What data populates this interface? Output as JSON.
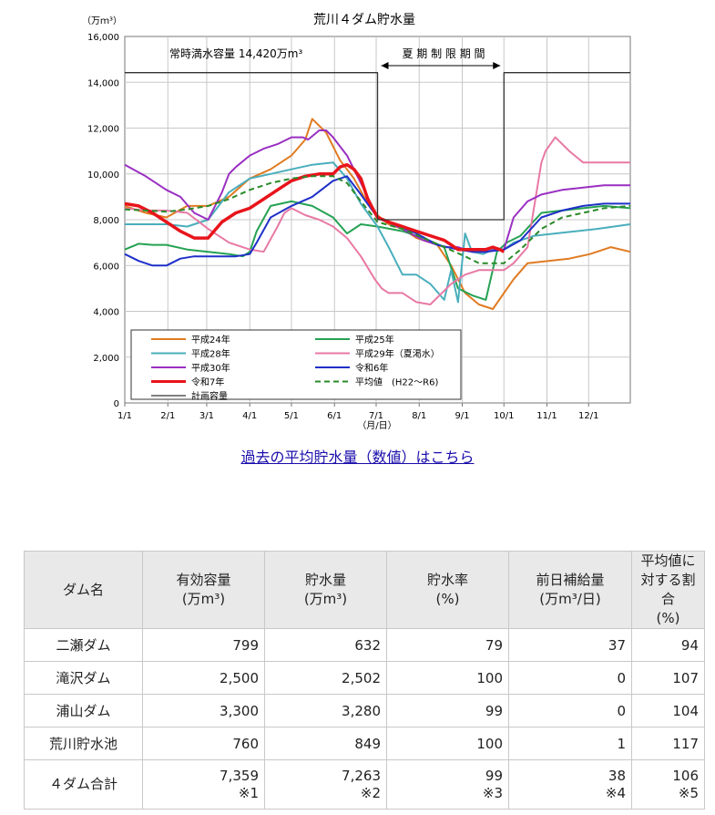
{
  "chart_data": {
    "type": "line",
    "title": "荒川４ダム貯水量",
    "y_unit": "（万ｍ³）",
    "x_unit": "（月/日）",
    "ylim": [
      0,
      16000
    ],
    "yticks": [
      "0",
      "2,000",
      "4,000",
      "6,000",
      "8,000",
      "10,000",
      "12,000",
      "14,000",
      "16,000"
    ],
    "y_tick_values": [
      0,
      2000,
      4000,
      6000,
      8000,
      10000,
      12000,
      14000,
      16000
    ],
    "x_months": [
      "1/1",
      "2/1",
      "3/1",
      "4/1",
      "5/1",
      "6/1",
      "7/1",
      "8/1",
      "9/1",
      "10/1",
      "11/1",
      "12/1"
    ],
    "grid": true,
    "legend_position": "bottom-left",
    "annotations": {
      "full_capacity": "常時満水容量  14,420万m³",
      "summer_period": "夏 期 制 限 期 間"
    },
    "series": [
      {
        "name": "平成24年",
        "color": "#e07b22",
        "width": 2,
        "dash": "none",
        "x": [
          0,
          15,
          30,
          45,
          60,
          75,
          90,
          105,
          120,
          130,
          135,
          145,
          155,
          165,
          175,
          182,
          190,
          200,
          210,
          225,
          235,
          245,
          255,
          265,
          273,
          280,
          290,
          305,
          320,
          335,
          350,
          364
        ],
        "y": [
          8600,
          8300,
          8100,
          8600,
          8600,
          9000,
          9800,
          10200,
          10800,
          11500,
          12400,
          11800,
          10600,
          9800,
          8700,
          8200,
          7800,
          7600,
          7200,
          6900,
          6000,
          4800,
          4300,
          4100,
          4800,
          5400,
          6100,
          6200,
          6300,
          6500,
          6800,
          6600
        ]
      },
      {
        "name": "平成25年",
        "color": "#25a253",
        "width": 2,
        "dash": "none",
        "x": [
          0,
          10,
          20,
          30,
          45,
          60,
          75,
          85,
          90,
          95,
          105,
          120,
          135,
          150,
          160,
          170,
          182,
          200,
          215,
          230,
          240,
          250,
          260,
          268,
          275,
          285,
          300,
          315,
          330,
          345,
          364
        ],
        "y": [
          6700,
          6950,
          6900,
          6900,
          6700,
          6600,
          6500,
          6400,
          6600,
          7500,
          8600,
          8800,
          8600,
          8100,
          7400,
          7800,
          7700,
          7500,
          7200,
          6800,
          5000,
          4700,
          4500,
          6600,
          7000,
          7300,
          8300,
          8400,
          8500,
          8600,
          8500
        ]
      },
      {
        "name": "平成28年",
        "color": "#4aaebc",
        "width": 2,
        "dash": "none",
        "x": [
          0,
          15,
          30,
          45,
          60,
          75,
          90,
          105,
          120,
          135,
          150,
          160,
          170,
          182,
          190,
          200,
          210,
          220,
          230,
          235,
          240,
          245,
          250,
          258,
          265,
          273,
          280,
          295,
          310,
          325,
          340,
          364
        ],
        "y": [
          7800,
          7800,
          7800,
          7700,
          8000,
          9200,
          9800,
          10000,
          10200,
          10400,
          10500,
          9800,
          8700,
          7700,
          6800,
          5600,
          5600,
          5200,
          4500,
          5800,
          4400,
          7400,
          6600,
          6500,
          6700,
          6700,
          7000,
          7300,
          7400,
          7500,
          7600,
          7800
        ]
      },
      {
        "name": "平成29年（夏渇水）",
        "color": "#e879a4",
        "width": 2,
        "dash": "none",
        "x": [
          0,
          15,
          30,
          45,
          60,
          75,
          90,
          100,
          110,
          115,
          120,
          130,
          140,
          150,
          160,
          170,
          180,
          185,
          190,
          200,
          210,
          220,
          235,
          245,
          255,
          265,
          273,
          280,
          290,
          300,
          303,
          310,
          320,
          330,
          345,
          364
        ],
        "y": [
          8500,
          8400,
          8400,
          8300,
          7600,
          7000,
          6700,
          6600,
          7700,
          8300,
          8500,
          8200,
          8000,
          7700,
          7200,
          6400,
          5400,
          5000,
          4800,
          4800,
          4400,
          4300,
          5200,
          5600,
          5800,
          5800,
          5800,
          6100,
          6800,
          10500,
          11000,
          11600,
          11000,
          10500,
          10500,
          10500
        ]
      },
      {
        "name": "平成30年",
        "color": "#9a2fc2",
        "width": 2,
        "dash": "none",
        "x": [
          0,
          15,
          30,
          40,
          50,
          60,
          70,
          75,
          80,
          90,
          100,
          110,
          120,
          128,
          132,
          140,
          145,
          150,
          155,
          160,
          170,
          182,
          200,
          215,
          230,
          240,
          250,
          260,
          268,
          273,
          280,
          290,
          300,
          315,
          330,
          345,
          364
        ],
        "y": [
          10400,
          9900,
          9300,
          9000,
          8300,
          8000,
          9200,
          10000,
          10300,
          10800,
          11100,
          11300,
          11600,
          11600,
          11500,
          11900,
          11900,
          11600,
          11200,
          10800,
          9600,
          8100,
          7600,
          7100,
          6800,
          6800,
          6600,
          6600,
          6700,
          6700,
          8100,
          8800,
          9100,
          9300,
          9400,
          9500,
          9500
        ]
      },
      {
        "name": "令和6年",
        "color": "#1f30c8",
        "width": 2,
        "dash": "none",
        "x": [
          0,
          10,
          20,
          30,
          40,
          50,
          60,
          70,
          80,
          90,
          95,
          105,
          120,
          135,
          150,
          160,
          170,
          182,
          195,
          210,
          225,
          240,
          250,
          260,
          273,
          285,
          300,
          315,
          330,
          345,
          364
        ],
        "y": [
          6500,
          6200,
          6000,
          6000,
          6300,
          6400,
          6400,
          6400,
          6400,
          6500,
          7000,
          8100,
          8600,
          9000,
          9700,
          9900,
          9100,
          8100,
          7800,
          7400,
          6900,
          6700,
          6600,
          6600,
          6700,
          7100,
          8100,
          8400,
          8600,
          8700,
          8700
        ]
      },
      {
        "name": "令和7年",
        "color": "#e8141b",
        "width": 3.5,
        "dash": "none",
        "x": [
          0,
          10,
          20,
          30,
          40,
          50,
          60,
          70,
          80,
          90,
          100,
          110,
          120,
          130,
          140,
          150,
          155,
          160,
          165,
          170,
          175,
          182,
          190,
          200,
          210,
          220,
          230,
          235,
          240,
          245,
          250,
          255,
          260,
          265,
          270,
          273
        ],
        "y": [
          8700,
          8600,
          8300,
          7900,
          7500,
          7200,
          7200,
          7900,
          8300,
          8500,
          8900,
          9300,
          9700,
          9900,
          10000,
          10000,
          10300,
          10400,
          10200,
          9800,
          8900,
          8100,
          7900,
          7700,
          7500,
          7300,
          7100,
          6900,
          6700,
          6700,
          6700,
          6700,
          6700,
          6800,
          6700,
          6600
        ]
      },
      {
        "name": "平均値　(H22～R6)",
        "color": "#2a8a2a",
        "width": 2,
        "dash": "6,4",
        "x": [
          0,
          15,
          30,
          45,
          60,
          75,
          90,
          105,
          120,
          135,
          150,
          160,
          170,
          182,
          200,
          215,
          230,
          245,
          255,
          265,
          273,
          285,
          300,
          315,
          330,
          345,
          364
        ],
        "y": [
          8450,
          8400,
          8350,
          8450,
          8600,
          8900,
          9300,
          9600,
          9800,
          9900,
          9900,
          9600,
          8800,
          7900,
          7600,
          7200,
          6800,
          6400,
          6100,
          6100,
          6100,
          6700,
          7600,
          8100,
          8300,
          8500,
          8600
        ]
      },
      {
        "name": "計画容量",
        "color": "#333333",
        "width": 1.3,
        "dash": "none",
        "x": [
          0,
          182,
          182,
          273,
          273,
          364
        ],
        "y": [
          14420,
          14420,
          8000,
          8000,
          14420,
          14420
        ]
      }
    ]
  },
  "link": {
    "text": "過去の平均貯水量（数値）はこちら"
  },
  "table": {
    "headers": [
      {
        "line1": "ダム名",
        "line2": "",
        "line3": ""
      },
      {
        "line1": "有効容量",
        "line2": "(万m³)",
        "line3": ""
      },
      {
        "line1": "貯水量",
        "line2": "(万m³)",
        "line3": ""
      },
      {
        "line1": "貯水率",
        "line2": "(%)",
        "line3": ""
      },
      {
        "line1": "前日補給量",
        "line2": "(万m³/日)",
        "line3": ""
      },
      {
        "line1": "平均値に",
        "line2": "対する割合",
        "line3": "(%)"
      }
    ],
    "rows": [
      {
        "name": "二瀬ダム",
        "capacity": "799",
        "storage": "632",
        "rate": "79",
        "supply": "37",
        "ratio": "94"
      },
      {
        "name": "滝沢ダム",
        "capacity": "2,500",
        "storage": "2,502",
        "rate": "100",
        "supply": "0",
        "ratio": "107"
      },
      {
        "name": "浦山ダム",
        "capacity": "3,300",
        "storage": "3,280",
        "rate": "99",
        "supply": "0",
        "ratio": "104"
      },
      {
        "name": "荒川貯水池",
        "capacity": "760",
        "storage": "849",
        "rate": "100",
        "supply": "1",
        "ratio": "117"
      }
    ],
    "total": {
      "name": "４ダム合計",
      "capacity": "7,359",
      "capacity_note": "※1",
      "storage": "7,263",
      "storage_note": "※2",
      "rate": "99",
      "rate_note": "※3",
      "supply": "38",
      "supply_note": "※4",
      "ratio": "106",
      "ratio_note": "※5"
    }
  }
}
